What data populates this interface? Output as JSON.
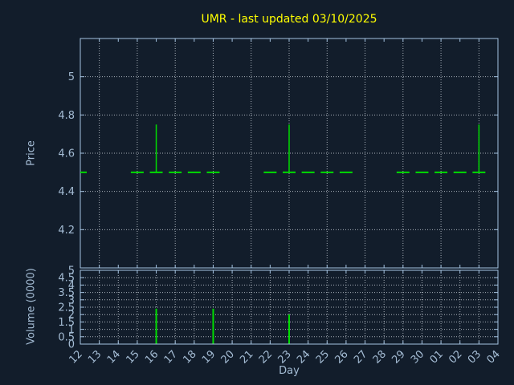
{
  "title": "UMR - last updated 03/10/2025",
  "xlabel": "Day",
  "x_categories": [
    "12",
    "13",
    "14",
    "15",
    "16",
    "17",
    "18",
    "19",
    "20",
    "21",
    "22",
    "23",
    "24",
    "25",
    "26",
    "27",
    "28",
    "29",
    "30",
    "01",
    "02",
    "03",
    "04"
  ],
  "colors": {
    "background": "#121d2b",
    "frame": "#a4c2e0",
    "label": "#a4bcd4",
    "grid": "#a9b1ba",
    "series_green": "#00dd00",
    "title_yellow": "#ffff00"
  },
  "chart_data": [
    {
      "type": "candlestick",
      "panel": "price",
      "ylabel": "Price",
      "ylim": [
        4.0,
        5.2
      ],
      "ytick_values": [
        4.2,
        4.4,
        4.6,
        4.8,
        5.0
      ],
      "ytick_labels": [
        "4.2",
        "4.4",
        "4.6",
        "4.8",
        "5"
      ],
      "grid": "dotted, vertical every 2nd day, horizontal at y ticks",
      "grid_x_start": 1,
      "grid_x_step": 2,
      "marks": [
        {
          "day": "12",
          "price": 4.5
        },
        {
          "day": "15",
          "price": 4.5
        },
        {
          "day": "16",
          "price": 4.5,
          "high": 4.75
        },
        {
          "day": "17",
          "price": 4.5
        },
        {
          "day": "18",
          "price": 4.5
        },
        {
          "day": "19",
          "price": 4.5
        },
        {
          "day": "22",
          "price": 4.5
        },
        {
          "day": "23",
          "price": 4.5,
          "high": 4.75
        },
        {
          "day": "24",
          "price": 4.5
        },
        {
          "day": "25",
          "price": 4.5
        },
        {
          "day": "26",
          "price": 4.5
        },
        {
          "day": "29",
          "price": 4.5
        },
        {
          "day": "30",
          "price": 4.5
        },
        {
          "day": "01",
          "price": 4.5
        },
        {
          "day": "02",
          "price": 4.5
        },
        {
          "day": "03",
          "price": 4.5,
          "high": 4.75
        }
      ]
    },
    {
      "type": "bar",
      "panel": "volume",
      "ylabel": "Volume (0000)",
      "ylim": [
        0,
        5
      ],
      "ytick_values": [
        0,
        0.5,
        1,
        1.5,
        2,
        2.5,
        3,
        3.5,
        4,
        4.5,
        5
      ],
      "ytick_labels": [
        "0",
        "0.5",
        "1",
        "1.5",
        "2",
        "2.5",
        "3",
        "3.5",
        "4",
        "4.5",
        "5"
      ],
      "grid": "dotted, vertical every day, horizontal every 0.5",
      "grid_x_start": 1,
      "grid_x_step": 1,
      "bars": [
        {
          "day": "16",
          "volume": 2.4
        },
        {
          "day": "19",
          "volume": 2.4
        },
        {
          "day": "23",
          "volume": 2.0
        }
      ]
    }
  ]
}
